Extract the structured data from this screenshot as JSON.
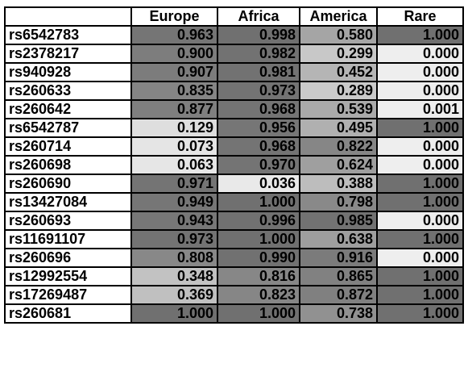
{
  "columns": [
    "Europe",
    "Africa",
    "America",
    "Rare"
  ],
  "rows": [
    {
      "id": "rs6542783",
      "values": [
        "0.963",
        "0.998",
        "0.580",
        "1.000"
      ]
    },
    {
      "id": "rs2378217",
      "values": [
        "0.900",
        "0.982",
        "0.299",
        "0.000"
      ]
    },
    {
      "id": "rs940928",
      "values": [
        "0.907",
        "0.981",
        "0.452",
        "0.000"
      ]
    },
    {
      "id": "rs260633",
      "values": [
        "0.835",
        "0.973",
        "0.289",
        "0.000"
      ]
    },
    {
      "id": "rs260642",
      "values": [
        "0.877",
        "0.968",
        "0.539",
        "0.001"
      ]
    },
    {
      "id": "rs6542787",
      "values": [
        "0.129",
        "0.956",
        "0.495",
        "1.000"
      ]
    },
    {
      "id": "rs260714",
      "values": [
        "0.073",
        "0.968",
        "0.822",
        "0.000"
      ]
    },
    {
      "id": "rs260698",
      "values": [
        "0.063",
        "0.970",
        "0.624",
        "0.000"
      ]
    },
    {
      "id": "rs260690",
      "values": [
        "0.971",
        "0.036",
        "0.388",
        "1.000"
      ]
    },
    {
      "id": "rs13427084",
      "values": [
        "0.949",
        "1.000",
        "0.798",
        "1.000"
      ]
    },
    {
      "id": "rs260693",
      "values": [
        "0.943",
        "0.996",
        "0.985",
        "0.000"
      ]
    },
    {
      "id": "rs11691107",
      "values": [
        "0.973",
        "1.000",
        "0.638",
        "1.000"
      ]
    },
    {
      "id": "rs260696",
      "values": [
        "0.808",
        "0.990",
        "0.916",
        "0.000"
      ]
    },
    {
      "id": "rs12992554",
      "values": [
        "0.348",
        "0.816",
        "0.865",
        "1.000"
      ]
    },
    {
      "id": "rs17269487",
      "values": [
        "0.369",
        "0.823",
        "0.872",
        "1.000"
      ]
    },
    {
      "id": "rs260681",
      "values": [
        "1.000",
        "1.000",
        "0.738",
        "1.000"
      ]
    }
  ]
}
